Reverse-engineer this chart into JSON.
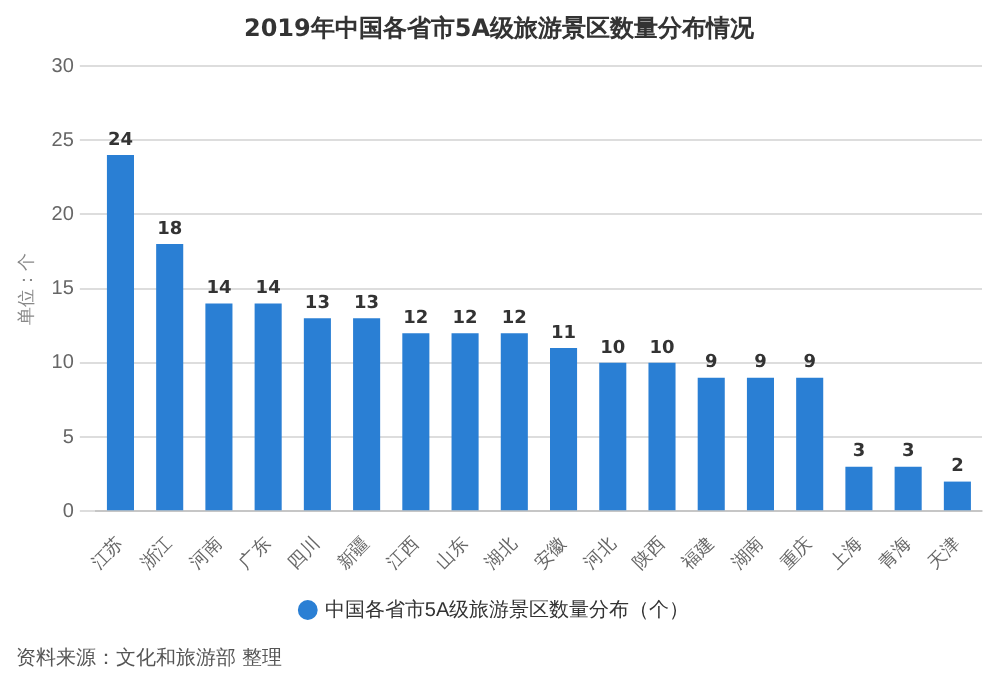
{
  "chart_data": {
    "type": "bar",
    "title": "2019年中国各省市5A级旅游景区数量分布情况",
    "ylabel": "单位：个",
    "categories": [
      "江苏",
      "浙江",
      "河南",
      "广东",
      "四川",
      "新疆",
      "江西",
      "山东",
      "湖北",
      "安徽",
      "河北",
      "陕西",
      "福建",
      "湖南",
      "重庆",
      "上海",
      "青海",
      "天津"
    ],
    "series": [
      {
        "name": "中国各省市5A级旅游景区数量分布（个）",
        "color": "#2a7fd4",
        "values": [
          24,
          18,
          14,
          14,
          13,
          13,
          12,
          12,
          12,
          11,
          10,
          10,
          9,
          9,
          9,
          3,
          3,
          2
        ]
      }
    ],
    "ylim": [
      0,
      30
    ],
    "yticks": [
      0,
      5,
      10,
      15,
      20,
      25,
      30
    ],
    "grid": "y",
    "legend": "bottom",
    "data_labels": true,
    "annotations": [
      "资料来源：文化和旅游部 整理"
    ]
  }
}
